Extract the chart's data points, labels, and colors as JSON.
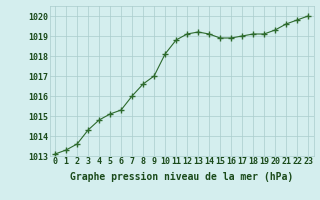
{
  "x": [
    0,
    1,
    2,
    3,
    4,
    5,
    6,
    7,
    8,
    9,
    10,
    11,
    12,
    13,
    14,
    15,
    16,
    17,
    18,
    19,
    20,
    21,
    22,
    23
  ],
  "y": [
    1013.1,
    1013.3,
    1013.6,
    1014.3,
    1014.8,
    1015.1,
    1015.3,
    1016.0,
    1016.6,
    1017.0,
    1018.1,
    1018.8,
    1019.1,
    1019.2,
    1019.1,
    1018.9,
    1018.9,
    1019.0,
    1019.1,
    1019.1,
    1019.3,
    1019.6,
    1019.8,
    1020.0
  ],
  "line_color": "#2d6a2d",
  "marker": "+",
  "marker_size": 4,
  "bg_color": "#d4eeee",
  "grid_color": "#aacccc",
  "xlabel": "Graphe pression niveau de la mer (hPa)",
  "ylim": [
    1013.0,
    1020.5
  ],
  "yticks": [
    1013,
    1014,
    1015,
    1016,
    1017,
    1018,
    1019,
    1020
  ],
  "xticks": [
    0,
    1,
    2,
    3,
    4,
    5,
    6,
    7,
    8,
    9,
    10,
    11,
    12,
    13,
    14,
    15,
    16,
    17,
    18,
    19,
    20,
    21,
    22,
    23
  ],
  "xlabel_fontsize": 7.0,
  "tick_fontsize": 6.0,
  "label_color": "#1a4a1a"
}
